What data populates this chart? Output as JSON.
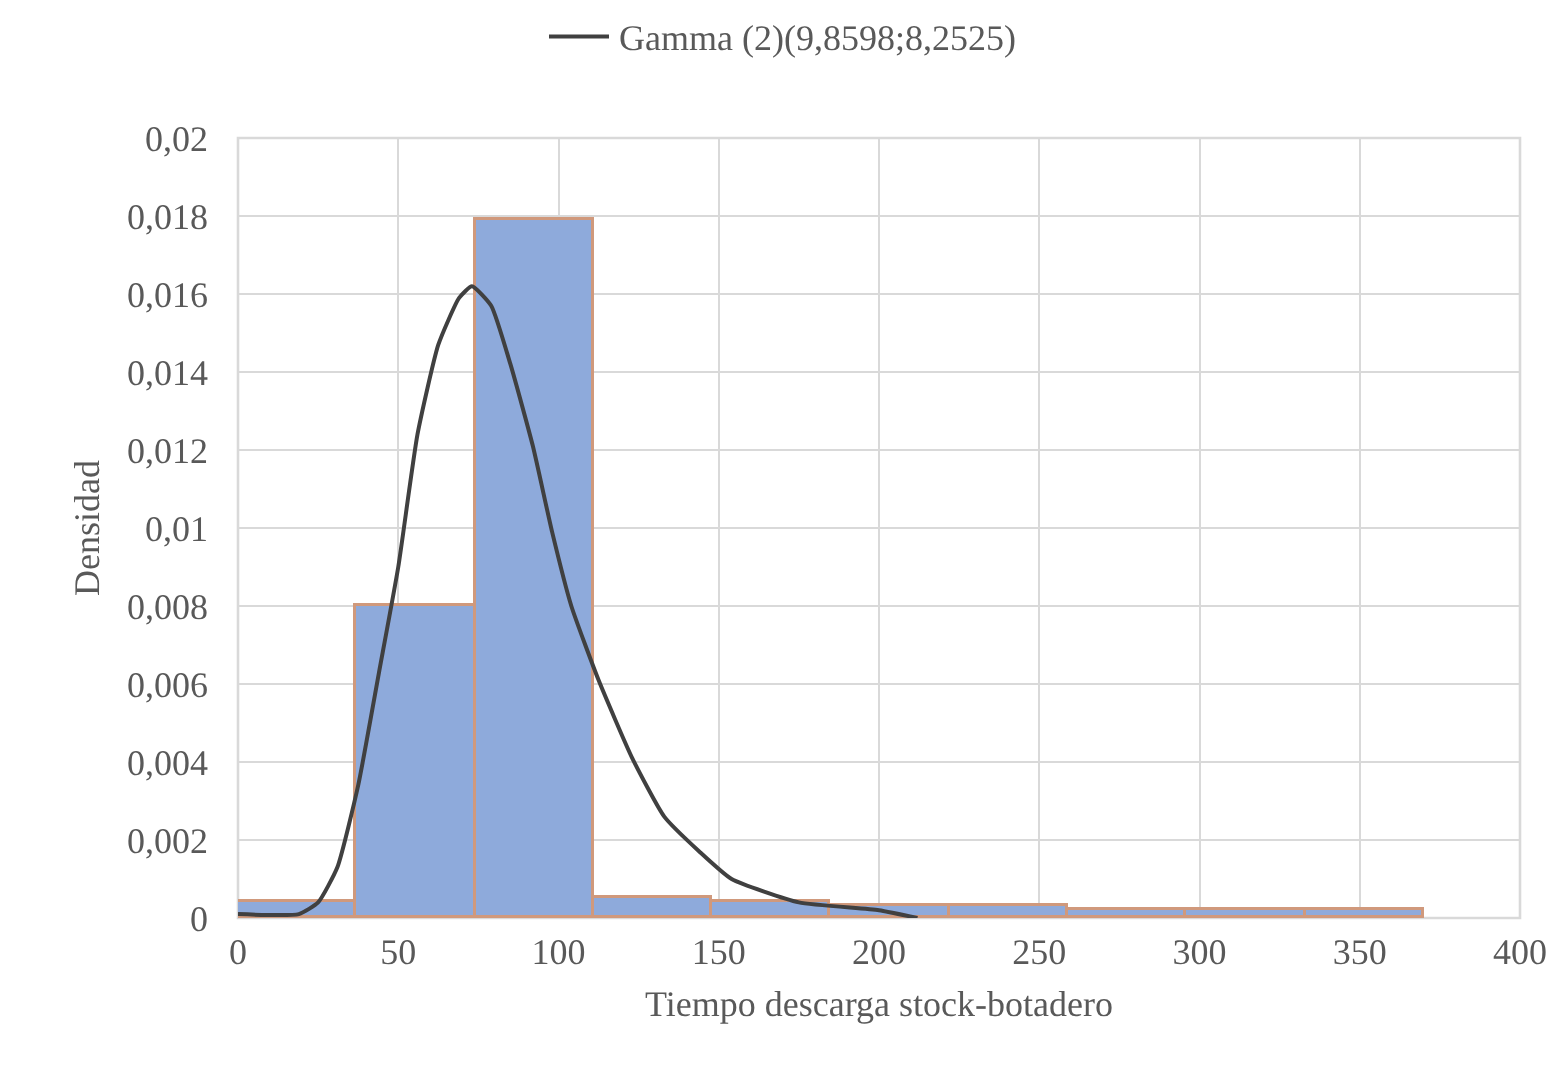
{
  "chart_data": {
    "type": "histogram",
    "xlabel": "Tiempo descarga stock-botadero",
    "ylabel": "Densidad",
    "bins": [
      0,
      37,
      74,
      111,
      148,
      185,
      222,
      259,
      296,
      333,
      370
    ],
    "values": [
      0.0004,
      0.008,
      0.0179,
      0.0005,
      0.0004,
      0.0003,
      0.0003,
      0.0002,
      0.0002,
      0.0002
    ],
    "color": "#8eaadb",
    "series": [
      {
        "type": "line",
        "name": "Gamma (2)(9,8598;8,2525)",
        "color": "#404040",
        "x": [
          0,
          19,
          25,
          31,
          37.5,
          44,
          50,
          56,
          62.5,
          69,
          73,
          79,
          85,
          92,
          98,
          104,
          112.5,
          123,
          133,
          144,
          154,
          175,
          200,
          212
        ],
        "values": [
          0.0001,
          0.0001,
          0.0004,
          0.0013,
          0.0034,
          0.0063,
          0.009,
          0.0124,
          0.0147,
          0.0159,
          0.0162,
          0.0157,
          0.0142,
          0.0121,
          0.0099,
          0.008,
          0.0061,
          0.0041,
          0.0026,
          0.0017,
          0.001,
          0.0004,
          0.0002,
          0
        ]
      }
    ],
    "xlim": [
      0,
      400
    ],
    "xticks": [
      0,
      50,
      100,
      150,
      200,
      250,
      300,
      350,
      400
    ],
    "ylim": [
      0,
      0.02
    ],
    "yticks": [
      0,
      {
        "value": 0.002,
        "label": "0,002"
      },
      {
        "value": 0.004,
        "label": "0,004"
      },
      {
        "value": 0.006,
        "label": "0,006"
      },
      {
        "value": 0.008,
        "label": "0,008"
      },
      {
        "value": 0.01,
        "label": "0,01"
      },
      {
        "value": 0.012,
        "label": "0,012"
      },
      {
        "value": 0.014,
        "label": "0,014"
      },
      {
        "value": 0.016,
        "label": "0,016"
      },
      {
        "value": 0.018,
        "label": "0,018"
      },
      {
        "value": 0.02,
        "label": "0,02"
      }
    ],
    "grid": true,
    "legend": "top"
  }
}
